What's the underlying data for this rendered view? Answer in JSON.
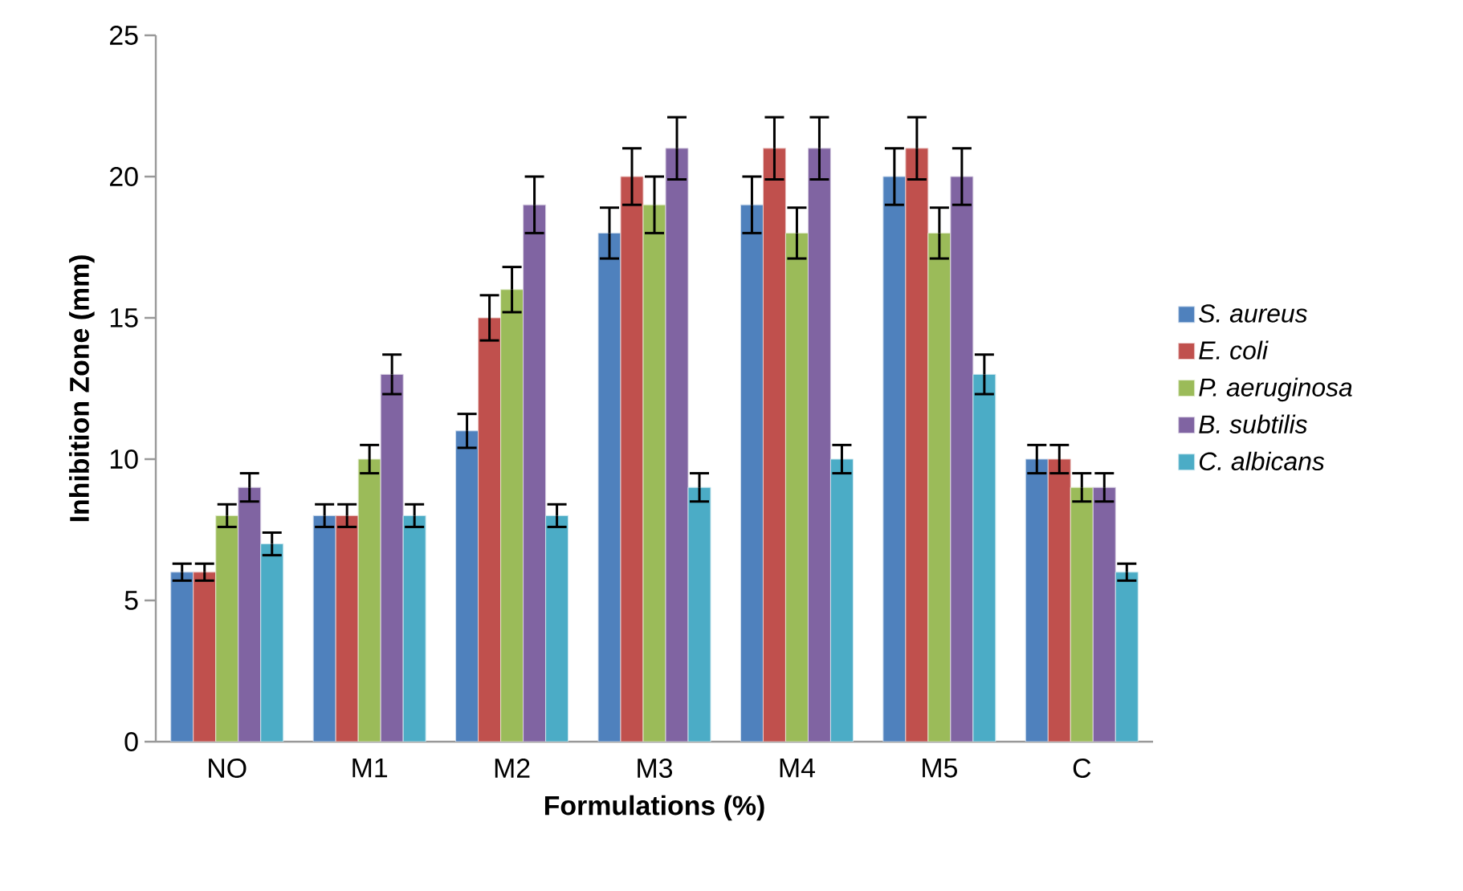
{
  "chart_data": {
    "type": "bar",
    "xlabel": "Formulations (%)",
    "ylabel": "Inhibition Zone (mm)",
    "categories": [
      "NO",
      "M1",
      "M2",
      "M3",
      "M4",
      "M5",
      "C"
    ],
    "series": [
      {
        "name": "S. aureus",
        "color": "#4f81bd",
        "values": [
          6,
          8,
          11,
          18,
          19,
          20,
          10
        ],
        "errors": [
          0.3,
          0.4,
          0.6,
          0.9,
          1.0,
          1.0,
          0.5
        ]
      },
      {
        "name": "E. coli",
        "color": "#c0504d",
        "values": [
          6,
          8,
          15,
          20,
          21,
          21,
          10
        ],
        "errors": [
          0.3,
          0.4,
          0.8,
          1.0,
          1.1,
          1.1,
          0.5
        ]
      },
      {
        "name": "P. aeruginosa",
        "color": "#9bbb59",
        "values": [
          8,
          10,
          16,
          19,
          18,
          18,
          9
        ],
        "errors": [
          0.4,
          0.5,
          0.8,
          1.0,
          0.9,
          0.9,
          0.5
        ]
      },
      {
        "name": "B. subtilis",
        "color": "#8064a2",
        "values": [
          9,
          13,
          19,
          21,
          21,
          20,
          9
        ],
        "errors": [
          0.5,
          0.7,
          1.0,
          1.1,
          1.1,
          1.0,
          0.5
        ]
      },
      {
        "name": "C. albicans",
        "color": "#4bacc6",
        "values": [
          7,
          8,
          8,
          9,
          10,
          13,
          6
        ],
        "errors": [
          0.4,
          0.4,
          0.4,
          0.5,
          0.5,
          0.7,
          0.3
        ]
      }
    ],
    "ylim": [
      0,
      25
    ],
    "yticks": [
      0,
      5,
      10,
      15,
      20,
      25
    ],
    "grid": false,
    "legend": "right"
  }
}
